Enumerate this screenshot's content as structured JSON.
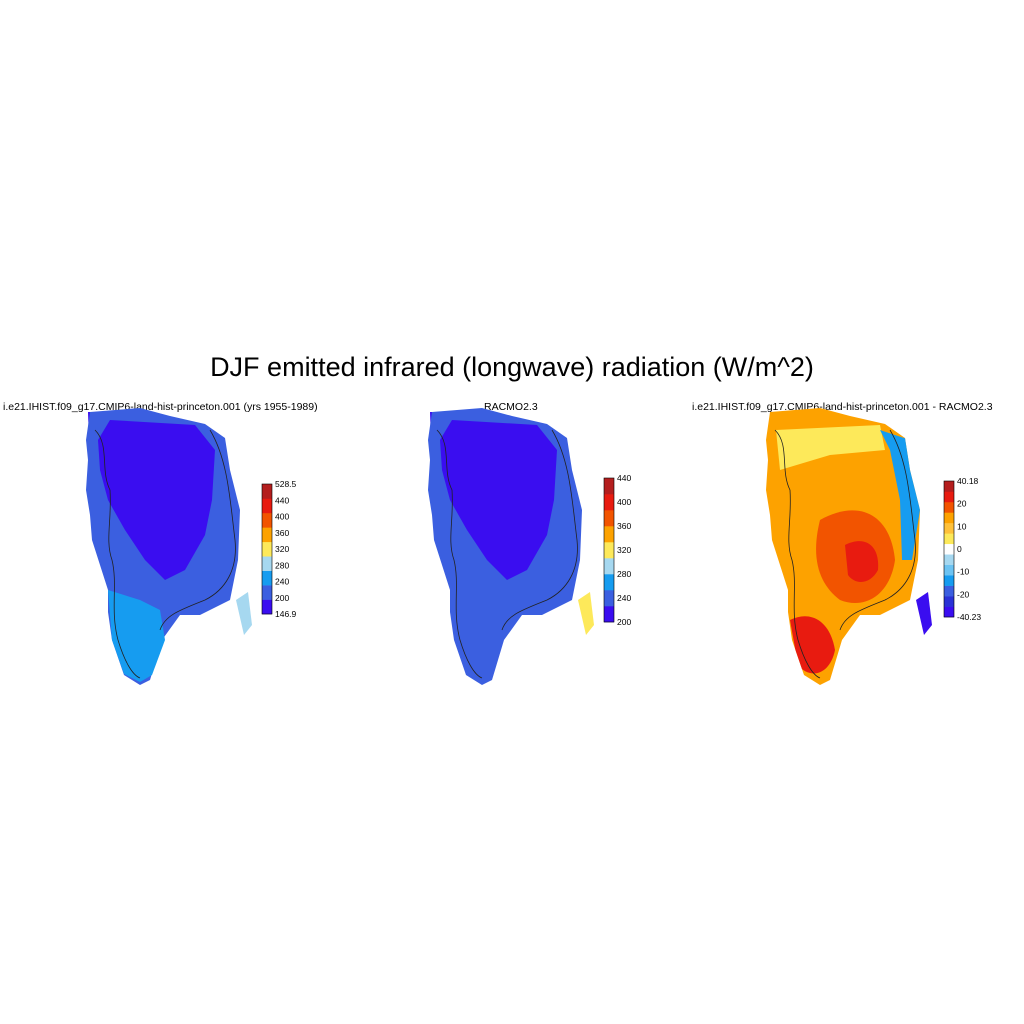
{
  "title": "DJF emitted infrared (longwave) radiation (W/m^2)",
  "panels": [
    {
      "title": "i.e21.IHIST.f09_g17.CMIP6-land-hist-princeton.001 (yrs 1955-1989)",
      "colorbar": {
        "colors": [
          "#3a0df0",
          "#3b5fe0",
          "#169cf0",
          "#a6d8f0",
          "#fde95a",
          "#fda200",
          "#f25400",
          "#e81b10",
          "#b41e1e"
        ],
        "labels": [
          "528.5",
          "440",
          "400",
          "360",
          "320",
          "280",
          "240",
          "200",
          "146.9"
        ]
      }
    },
    {
      "title": "RACMO2.3",
      "colorbar": {
        "colors": [
          "#3a0df0",
          "#3b5fe0",
          "#169cf0",
          "#a6d8f0",
          "#fde95a",
          "#fda200",
          "#f25400",
          "#e81b10",
          "#b41e1e"
        ],
        "labels": [
          "440",
          "400",
          "360",
          "320",
          "280",
          "240",
          "200"
        ]
      }
    },
    {
      "title": "i.e21.IHIST.f09_g17.CMIP6-land-hist-princeton.001 - RACMO2.3",
      "colorbar": {
        "colors": [
          "#3a0df0",
          "#2a32d6",
          "#3b5fe0",
          "#169cf0",
          "#6cc3f2",
          "#a6d8f0",
          "#ffffff",
          "#fde95a",
          "#ffc13a",
          "#fda200",
          "#f25400",
          "#e81b10",
          "#b41e1e"
        ],
        "labels": [
          "40.18",
          "20",
          "10",
          "0",
          "-10",
          "-20",
          "-40.23"
        ]
      }
    }
  ]
}
